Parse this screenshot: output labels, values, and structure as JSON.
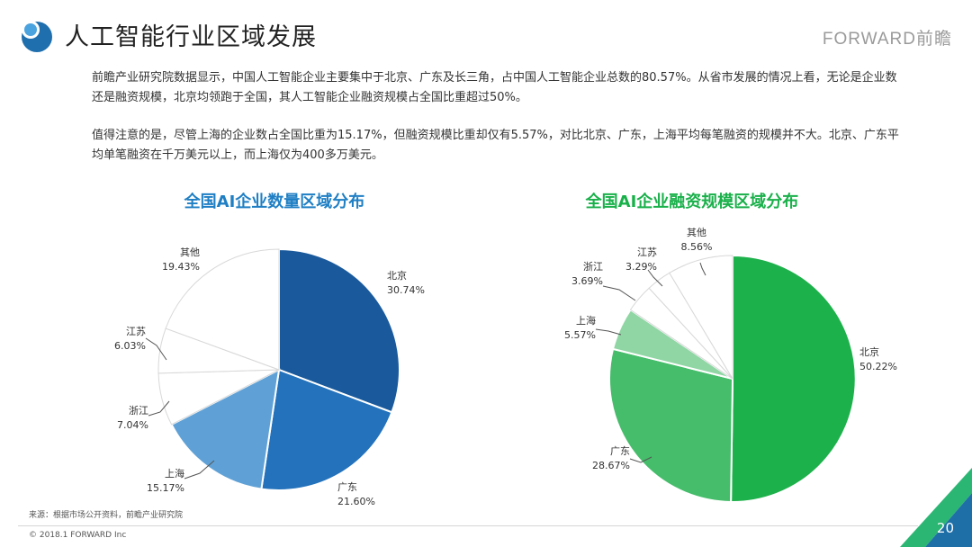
{
  "header": {
    "title": "人工智能行业区域发展",
    "brand": "FORWARD前瞻"
  },
  "body_text": {
    "p1": "前瞻产业研究院数据显示，中国人工智能企业主要集中于北京、广东及长三角，占中国人工智能企业总数的80.57%。从省市发展的情况上看，无论是企业数还是融资规模，北京均领跑于全国，其人工智能企业融资规模占全国比重超过50%。",
    "p2": "值得注意的是，尽管上海的企业数占全国比重为15.17%，但融资规模比重却仅有5.57%，对比北京、广东，上海平均每笔融资的规模并不大。北京、广东平均单笔融资在千万美元以上，而上海仅为400多万美元。"
  },
  "footer": {
    "source": "来源：根据市场公开资料，前瞻产业研究院",
    "copyright": "© 2018.1 FORWARD Inc",
    "page": "20"
  },
  "colors": {
    "accent_blue": "#1f7fc4",
    "accent_green": "#19b04a",
    "corner_dark": "#1e6fa8",
    "corner_green": "#2bb673"
  },
  "chart_data": [
    {
      "type": "pie",
      "title": "全国AI企业数量区域分布",
      "slices": [
        {
          "label": "北京",
          "value": 30.74,
          "display": "30.74%",
          "color": "#1a5a9c"
        },
        {
          "label": "广东",
          "value": 21.6,
          "display": "21.60%",
          "color": "#2372bb"
        },
        {
          "label": "上海",
          "value": 15.17,
          "display": "15.17%",
          "color": "#5fa1d6"
        },
        {
          "label": "浙江",
          "value": 7.04,
          "display": "7.04%",
          "color": "#ffffff"
        },
        {
          "label": "江苏",
          "value": 6.03,
          "display": "6.03%",
          "color": "#ffffff"
        },
        {
          "label": "其他",
          "value": 19.43,
          "display": "19.43%",
          "color": "#ffffff"
        }
      ]
    },
    {
      "type": "pie",
      "title": "全国AI企业融资规模区域分布",
      "slices": [
        {
          "label": "北京",
          "value": 50.22,
          "display": "50.22%",
          "color": "#1db14b"
        },
        {
          "label": "广东",
          "value": 28.67,
          "display": "28.67%",
          "color": "#45bd6a"
        },
        {
          "label": "上海",
          "value": 5.57,
          "display": "5.57%",
          "color": "#8fd6a4"
        },
        {
          "label": "浙江",
          "value": 3.69,
          "display": "3.69%",
          "color": "#ffffff"
        },
        {
          "label": "江苏",
          "value": 3.29,
          "display": "3.29%",
          "color": "#ffffff"
        },
        {
          "label": "其他",
          "value": 8.56,
          "display": "8.56%",
          "color": "#ffffff"
        }
      ]
    }
  ]
}
